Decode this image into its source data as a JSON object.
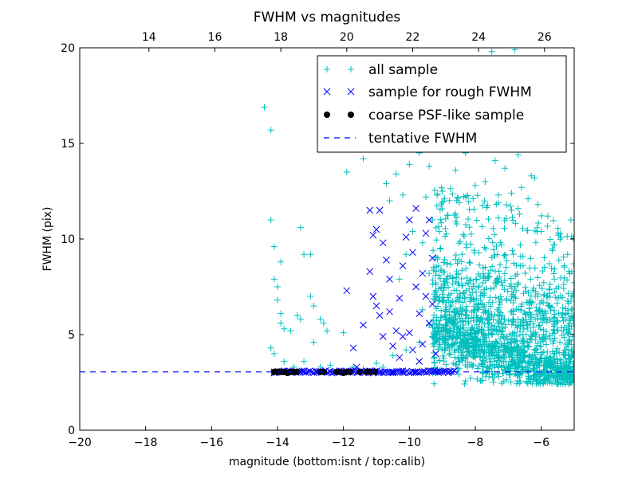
{
  "chart_data": {
    "type": "scatter",
    "title": "FWHM vs magnitudes",
    "xlabel": "magnitude (bottom:isnt / top:calib)",
    "ylabel": "FWHM (pix)",
    "xlim": [
      -20,
      -5
    ],
    "ylim": [
      0,
      20
    ],
    "x_ticks": [
      -20,
      -18,
      -16,
      -14,
      -12,
      -10,
      -8,
      -6
    ],
    "y_ticks": [
      0,
      5,
      10,
      15,
      20
    ],
    "top_axis": {
      "offset_from_bottom": 31.9,
      "ticks": [
        14,
        16,
        18,
        20,
        22,
        24,
        26
      ]
    },
    "grid": false,
    "legend_position": "top-right",
    "series": [
      {
        "name": "all sample",
        "marker": "plus",
        "color": "#00bfbf",
        "points": [
          [
            -14.4,
            16.9
          ],
          [
            -14.2,
            15.7
          ],
          [
            -14.2,
            11.0
          ],
          [
            -14.1,
            9.6
          ],
          [
            -13.9,
            8.8
          ],
          [
            -13.3,
            10.6
          ],
          [
            -14.1,
            7.9
          ],
          [
            -14.0,
            7.5
          ],
          [
            -14.0,
            6.8
          ],
          [
            -13.9,
            6.1
          ],
          [
            -13.9,
            5.6
          ],
          [
            -13.8,
            5.3
          ],
          [
            -13.6,
            5.2
          ],
          [
            -13.4,
            6.0
          ],
          [
            -13.3,
            5.8
          ],
          [
            -13.2,
            9.2
          ],
          [
            -13.0,
            9.2
          ],
          [
            -13.0,
            7.0
          ],
          [
            -12.9,
            6.5
          ],
          [
            -12.7,
            5.8
          ],
          [
            -12.6,
            5.6
          ],
          [
            -12.5,
            5.2
          ],
          [
            -12.2,
            14.9
          ],
          [
            -11.9,
            13.5
          ],
          [
            -12.0,
            5.1
          ],
          [
            -14.2,
            4.3
          ],
          [
            -14.1,
            4.0
          ],
          [
            -13.8,
            3.6
          ],
          [
            -13.5,
            3.3
          ],
          [
            -13.2,
            3.6
          ],
          [
            -12.9,
            4.6
          ],
          [
            -12.7,
            3.3
          ],
          [
            -12.4,
            3.4
          ],
          [
            -11.7,
            3.3
          ],
          [
            -11.4,
            3.2
          ],
          [
            -11.0,
            3.5
          ],
          [
            -10.8,
            3.3
          ],
          [
            -10.5,
            3.9
          ],
          [
            -10.1,
            4.2
          ],
          [
            -9.7,
            4.6
          ],
          [
            -11.4,
            14.2
          ],
          [
            -11.1,
            15.2
          ],
          [
            -10.7,
            12.9
          ],
          [
            -10.6,
            12.0
          ],
          [
            -10.4,
            13.4
          ],
          [
            -10.2,
            12.3
          ],
          [
            -10.0,
            13.9
          ],
          [
            -9.7,
            14.5
          ],
          [
            -9.5,
            12.2
          ],
          [
            -9.4,
            13.8
          ],
          [
            -9.3,
            11.0
          ],
          [
            -10.3,
            7.9
          ],
          [
            -10.1,
            9.2
          ],
          [
            -9.9,
            10.4
          ],
          [
            -9.6,
            9.8
          ],
          [
            -9.4,
            8.2
          ],
          [
            -9.2,
            7.3
          ],
          [
            -9.6,
            6.3
          ],
          [
            -9.4,
            5.5
          ],
          [
            -9.2,
            5.0
          ],
          [
            -9.0,
            12.5
          ],
          [
            -8.8,
            16.2
          ],
          [
            -8.6,
            13.6
          ],
          [
            -8.5,
            17.4
          ],
          [
            -8.3,
            14.5
          ],
          [
            -8.1,
            15.8
          ],
          [
            -8.0,
            12.8
          ],
          [
            -7.9,
            18.1
          ],
          [
            -7.8,
            14.9
          ],
          [
            -7.7,
            13.0
          ],
          [
            -7.6,
            16.7
          ],
          [
            -7.5,
            19.8
          ],
          [
            -7.4,
            14.1
          ],
          [
            -7.3,
            12.3
          ],
          [
            -7.2,
            17.5
          ],
          [
            -7.1,
            13.7
          ],
          [
            -7.0,
            16.0
          ],
          [
            -6.9,
            12.4
          ],
          [
            -6.8,
            19.9
          ],
          [
            -6.7,
            14.4
          ],
          [
            -6.6,
            12.7
          ],
          [
            -6.5,
            15.3
          ],
          [
            -6.3,
            13.3
          ],
          [
            -6.1,
            11.8
          ],
          [
            -6.0,
            10.4
          ],
          [
            -5.8,
            11.2
          ],
          [
            -5.6,
            9.7
          ],
          [
            -5.4,
            10.1
          ],
          [
            -5.2,
            9.2
          ],
          [
            -5.1,
            11.0
          ],
          [
            -6.2,
            13.2
          ],
          [
            -6.4,
            12.1
          ],
          [
            -6.9,
            11.5
          ],
          [
            -7.3,
            11.1
          ],
          [
            -5.6,
            7.9
          ],
          [
            -5.3,
            8.6
          ]
        ]
      },
      {
        "name": "sample for rough FWHM",
        "marker": "x",
        "color": "#0000ff",
        "points": [
          [
            -14.1,
            3.05
          ],
          [
            -13.8,
            3.05
          ],
          [
            -13.5,
            3.05
          ],
          [
            -13.2,
            3.1
          ],
          [
            -12.8,
            3.05
          ],
          [
            -12.4,
            3.05
          ],
          [
            -12.0,
            3.05
          ],
          [
            -11.6,
            3.05
          ],
          [
            -11.2,
            3.1
          ],
          [
            -10.9,
            3.05
          ],
          [
            -10.5,
            3.05
          ],
          [
            -10.2,
            3.1
          ],
          [
            -9.8,
            3.05
          ],
          [
            -9.4,
            3.05
          ],
          [
            -9.1,
            3.1
          ],
          [
            -8.8,
            3.05
          ],
          [
            -11.6,
            3.3
          ],
          [
            -11.9,
            7.3
          ],
          [
            -11.2,
            8.3
          ],
          [
            -11.1,
            10.2
          ],
          [
            -11.0,
            10.5
          ],
          [
            -11.0,
            6.5
          ],
          [
            -10.9,
            11.5
          ],
          [
            -11.2,
            11.5
          ],
          [
            -10.8,
            9.8
          ],
          [
            -10.7,
            8.9
          ],
          [
            -10.6,
            7.9
          ],
          [
            -10.6,
            6.2
          ],
          [
            -10.5,
            4.4
          ],
          [
            -10.4,
            5.2
          ],
          [
            -10.3,
            6.9
          ],
          [
            -10.2,
            8.6
          ],
          [
            -10.1,
            10.1
          ],
          [
            -10.0,
            11.0
          ],
          [
            -10.0,
            5.1
          ],
          [
            -9.9,
            9.3
          ],
          [
            -9.8,
            11.6
          ],
          [
            -9.8,
            7.5
          ],
          [
            -9.7,
            6.1
          ],
          [
            -9.6,
            8.2
          ],
          [
            -9.6,
            4.5
          ],
          [
            -9.5,
            10.3
          ],
          [
            -9.5,
            7.0
          ],
          [
            -9.4,
            11.0
          ],
          [
            -9.4,
            5.6
          ],
          [
            -9.3,
            9.0
          ],
          [
            -9.3,
            6.6
          ],
          [
            -10.8,
            4.9
          ],
          [
            -11.4,
            5.5
          ],
          [
            -11.7,
            4.3
          ],
          [
            -10.3,
            3.8
          ],
          [
            -9.7,
            3.6
          ],
          [
            -9.2,
            4.0
          ],
          [
            -10.9,
            6.0
          ],
          [
            -11.1,
            7.0
          ],
          [
            -10.2,
            4.9
          ],
          [
            -9.9,
            4.2
          ]
        ]
      },
      {
        "name": "coarse PSF-like sample",
        "marker": "circle",
        "color": "#000000",
        "points": [
          [
            -14.1,
            3.05
          ],
          [
            -14.0,
            3.05
          ],
          [
            -13.9,
            3.05
          ],
          [
            -13.8,
            3.05
          ],
          [
            -13.7,
            3.0
          ],
          [
            -13.6,
            3.05
          ],
          [
            -13.5,
            3.05
          ],
          [
            -13.4,
            3.05
          ],
          [
            -12.7,
            3.05
          ],
          [
            -12.6,
            3.05
          ],
          [
            -12.2,
            3.05
          ],
          [
            -12.1,
            3.05
          ],
          [
            -12.0,
            3.0
          ],
          [
            -11.9,
            3.05
          ],
          [
            -11.8,
            3.05
          ],
          [
            -11.5,
            3.05
          ],
          [
            -11.3,
            3.05
          ],
          [
            -11.2,
            3.05
          ],
          [
            -11.05,
            3.05
          ]
        ]
      },
      {
        "name": "tentative FWHM",
        "marker": "dashed-line",
        "color": "#0000ff",
        "y": 3.05
      }
    ]
  }
}
